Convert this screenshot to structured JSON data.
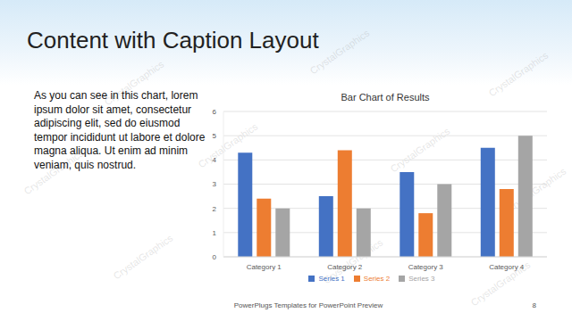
{
  "chart_data": {
    "type": "bar",
    "title": "Bar Chart of Results",
    "categories": [
      "Category 1",
      "Category 2",
      "Category 3",
      "Category 4"
    ],
    "series": [
      {
        "name": "Series 1",
        "color": "#4472c4",
        "values": [
          4.3,
          2.5,
          3.5,
          4.5
        ]
      },
      {
        "name": "Series 2",
        "color": "#ed7d31",
        "values": [
          2.4,
          4.4,
          1.8,
          2.8
        ]
      },
      {
        "name": "Series 3",
        "color": "#a5a5a5",
        "values": [
          2,
          2,
          3,
          5
        ]
      }
    ],
    "ylim": [
      0,
      6
    ],
    "yticks": [
      0,
      1,
      2,
      3,
      4,
      5,
      6
    ],
    "grid": true,
    "legend": "bottom"
  },
  "slide": {
    "title": "Content with Caption Layout",
    "caption": "As you can see in this chart, lorem ipsum dolor sit amet, consectetur adipiscing elit, sed do eiusmod tempor incididunt ut labore et dolore magna aliqua. Ut enim ad minim veniam, quis nostrud.",
    "footer": "PowerPlugs Templates for PowerPoint Preview",
    "page_number": "8",
    "watermark": "CrystalGraphics"
  }
}
